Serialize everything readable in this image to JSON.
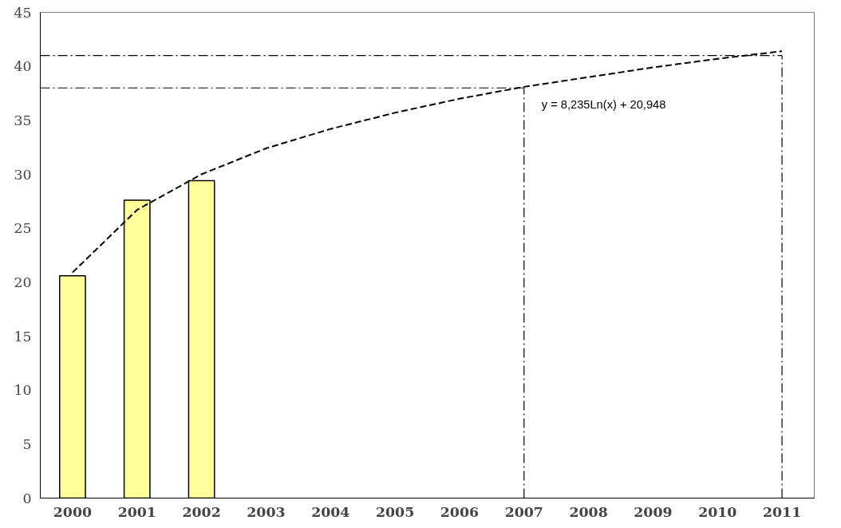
{
  "chart_data": {
    "type": "bar",
    "categories": [
      "2000",
      "2001",
      "2002",
      "2003",
      "2004",
      "2005",
      "2006",
      "2007",
      "2008",
      "2009",
      "2010",
      "2011"
    ],
    "series": [
      {
        "color": "#ffff99",
        "values": [
          20.6,
          27.6,
          29.4,
          null,
          null,
          null,
          null,
          null,
          null,
          null,
          null,
          null
        ]
      },
      {
        "type": "line",
        "color": "#000000",
        "line_style": "dashed",
        "values": [
          20.9,
          26.7,
          30.0,
          32.4,
          34.2,
          35.7,
          37.0,
          38.1,
          39.0,
          39.9,
          40.7,
          41.4
        ]
      }
    ],
    "ylim": [
      0,
      45
    ],
    "yticks": [
      0,
      5,
      10,
      15,
      20,
      25,
      30,
      35,
      40,
      45
    ],
    "grid": false,
    "ref_lines": [
      {
        "axis": "y",
        "value": 38,
        "color": "#000000",
        "line_style": "dashdot"
      },
      {
        "axis": "x",
        "value": "2007",
        "color": "#000000",
        "line_style": "dashdot"
      },
      {
        "axis": "y",
        "value": 41,
        "color": "#000000",
        "line_style": "dashdot"
      },
      {
        "axis": "x",
        "value": "2011",
        "color": "#000000",
        "line_style": "dashdot"
      }
    ],
    "annotations": [
      {
        "text": "y = 8,235Ln(x) + 20,948",
        "x": "2007",
        "y": 36.5
      }
    ]
  }
}
